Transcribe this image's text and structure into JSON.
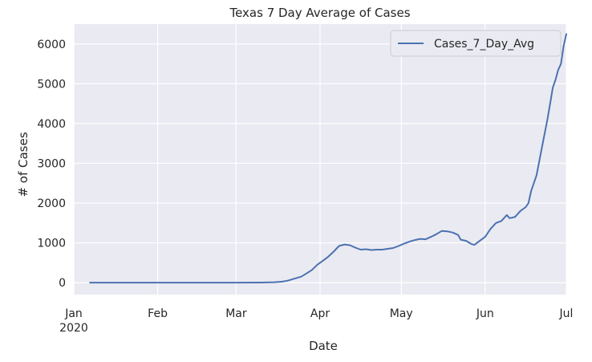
{
  "chart_data": {
    "type": "line",
    "title": "Texas 7 Day Average of Cases",
    "xlabel": "Date",
    "ylabel": "# of Cases",
    "ylim": [
      -300,
      6500
    ],
    "xlim": [
      "2020-01-01",
      "2020-07-01"
    ],
    "grid": true,
    "legend": "top-right",
    "x_ticks": [
      {
        "date": "2020-01-01",
        "label": "Jan",
        "sublabel": "2020"
      },
      {
        "date": "2020-02-01",
        "label": "Feb"
      },
      {
        "date": "2020-03-01",
        "label": "Mar"
      },
      {
        "date": "2020-04-01",
        "label": "Apr"
      },
      {
        "date": "2020-05-01",
        "label": "May"
      },
      {
        "date": "2020-06-01",
        "label": "Jun"
      },
      {
        "date": "2020-07-01",
        "label": "Jul"
      }
    ],
    "y_ticks": [
      0,
      1000,
      2000,
      3000,
      4000,
      5000,
      6000
    ],
    "series": [
      {
        "name": "Cases_7_Day_Avg",
        "color": "#4c72b0",
        "points": [
          [
            "2020-01-07",
            0
          ],
          [
            "2020-02-01",
            0
          ],
          [
            "2020-03-01",
            0
          ],
          [
            "2020-03-10",
            2
          ],
          [
            "2020-03-15",
            10
          ],
          [
            "2020-03-18",
            25
          ],
          [
            "2020-03-20",
            50
          ],
          [
            "2020-03-23",
            110
          ],
          [
            "2020-03-25",
            150
          ],
          [
            "2020-03-27",
            230
          ],
          [
            "2020-03-29",
            320
          ],
          [
            "2020-03-31",
            450
          ],
          [
            "2020-04-02",
            550
          ],
          [
            "2020-04-04",
            650
          ],
          [
            "2020-04-06",
            780
          ],
          [
            "2020-04-08",
            920
          ],
          [
            "2020-04-10",
            960
          ],
          [
            "2020-04-12",
            940
          ],
          [
            "2020-04-14",
            880
          ],
          [
            "2020-04-16",
            830
          ],
          [
            "2020-04-18",
            840
          ],
          [
            "2020-04-20",
            820
          ],
          [
            "2020-04-22",
            830
          ],
          [
            "2020-04-24",
            830
          ],
          [
            "2020-04-26",
            850
          ],
          [
            "2020-04-28",
            870
          ],
          [
            "2020-04-30",
            920
          ],
          [
            "2020-05-02",
            980
          ],
          [
            "2020-05-04",
            1030
          ],
          [
            "2020-05-06",
            1070
          ],
          [
            "2020-05-08",
            1100
          ],
          [
            "2020-05-10",
            1090
          ],
          [
            "2020-05-12",
            1150
          ],
          [
            "2020-05-14",
            1220
          ],
          [
            "2020-05-16",
            1300
          ],
          [
            "2020-05-18",
            1290
          ],
          [
            "2020-05-20",
            1260
          ],
          [
            "2020-05-22",
            1200
          ],
          [
            "2020-05-23",
            1080
          ],
          [
            "2020-05-25",
            1050
          ],
          [
            "2020-05-27",
            970
          ],
          [
            "2020-05-28",
            950
          ],
          [
            "2020-05-30",
            1050
          ],
          [
            "2020-06-01",
            1150
          ],
          [
            "2020-06-03",
            1350
          ],
          [
            "2020-06-05",
            1500
          ],
          [
            "2020-06-07",
            1550
          ],
          [
            "2020-06-09",
            1700
          ],
          [
            "2020-06-10",
            1620
          ],
          [
            "2020-06-12",
            1650
          ],
          [
            "2020-06-14",
            1800
          ],
          [
            "2020-06-16",
            1900
          ],
          [
            "2020-06-17",
            2000
          ],
          [
            "2020-06-18",
            2300
          ],
          [
            "2020-06-20",
            2700
          ],
          [
            "2020-06-22",
            3400
          ],
          [
            "2020-06-24",
            4100
          ],
          [
            "2020-06-25",
            4500
          ],
          [
            "2020-06-26",
            4900
          ],
          [
            "2020-06-27",
            5100
          ],
          [
            "2020-06-28",
            5350
          ],
          [
            "2020-06-29",
            5500
          ],
          [
            "2020-06-30",
            5950
          ],
          [
            "2020-07-01",
            6250
          ]
        ]
      }
    ]
  }
}
